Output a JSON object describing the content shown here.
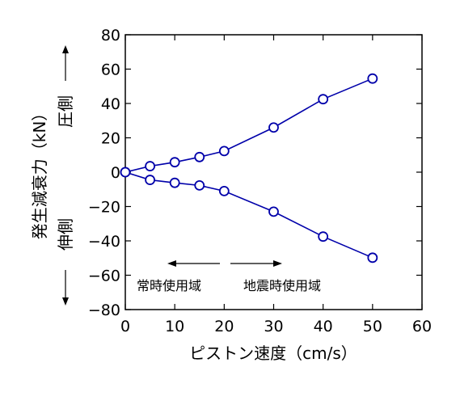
{
  "chart_data": {
    "type": "scatter",
    "title": "",
    "xlabel": "ピストン速度（cm/s）",
    "ylabel": "発生減衰力（kN）",
    "xlim": [
      0,
      60
    ],
    "ylim": [
      -80,
      80
    ],
    "xticks": [
      0,
      10,
      20,
      30,
      40,
      50,
      60
    ],
    "yticks": [
      -80,
      -60,
      -40,
      -20,
      0,
      20,
      40,
      60,
      80
    ],
    "grid": false,
    "legend": "none",
    "series": [
      {
        "x": [
          0,
          5,
          10,
          15,
          20,
          30,
          40,
          50
        ],
        "y": [
          0,
          3.5,
          5.8,
          8.8,
          12.3,
          26,
          42.5,
          54.5
        ]
      },
      {
        "x": [
          0,
          5,
          10,
          15,
          20,
          30,
          40,
          50
        ],
        "y": [
          0,
          -4.5,
          -6.2,
          -7.7,
          -11,
          -23,
          -37.5,
          -49.8
        ]
      }
    ],
    "line_color": "#0000aa",
    "marker": "open-circle",
    "annotations": {
      "compression_side": "圧側",
      "extension_side": "伸側",
      "normal_range": "常時使用域",
      "seismic_range": "地震時使用域"
    }
  }
}
